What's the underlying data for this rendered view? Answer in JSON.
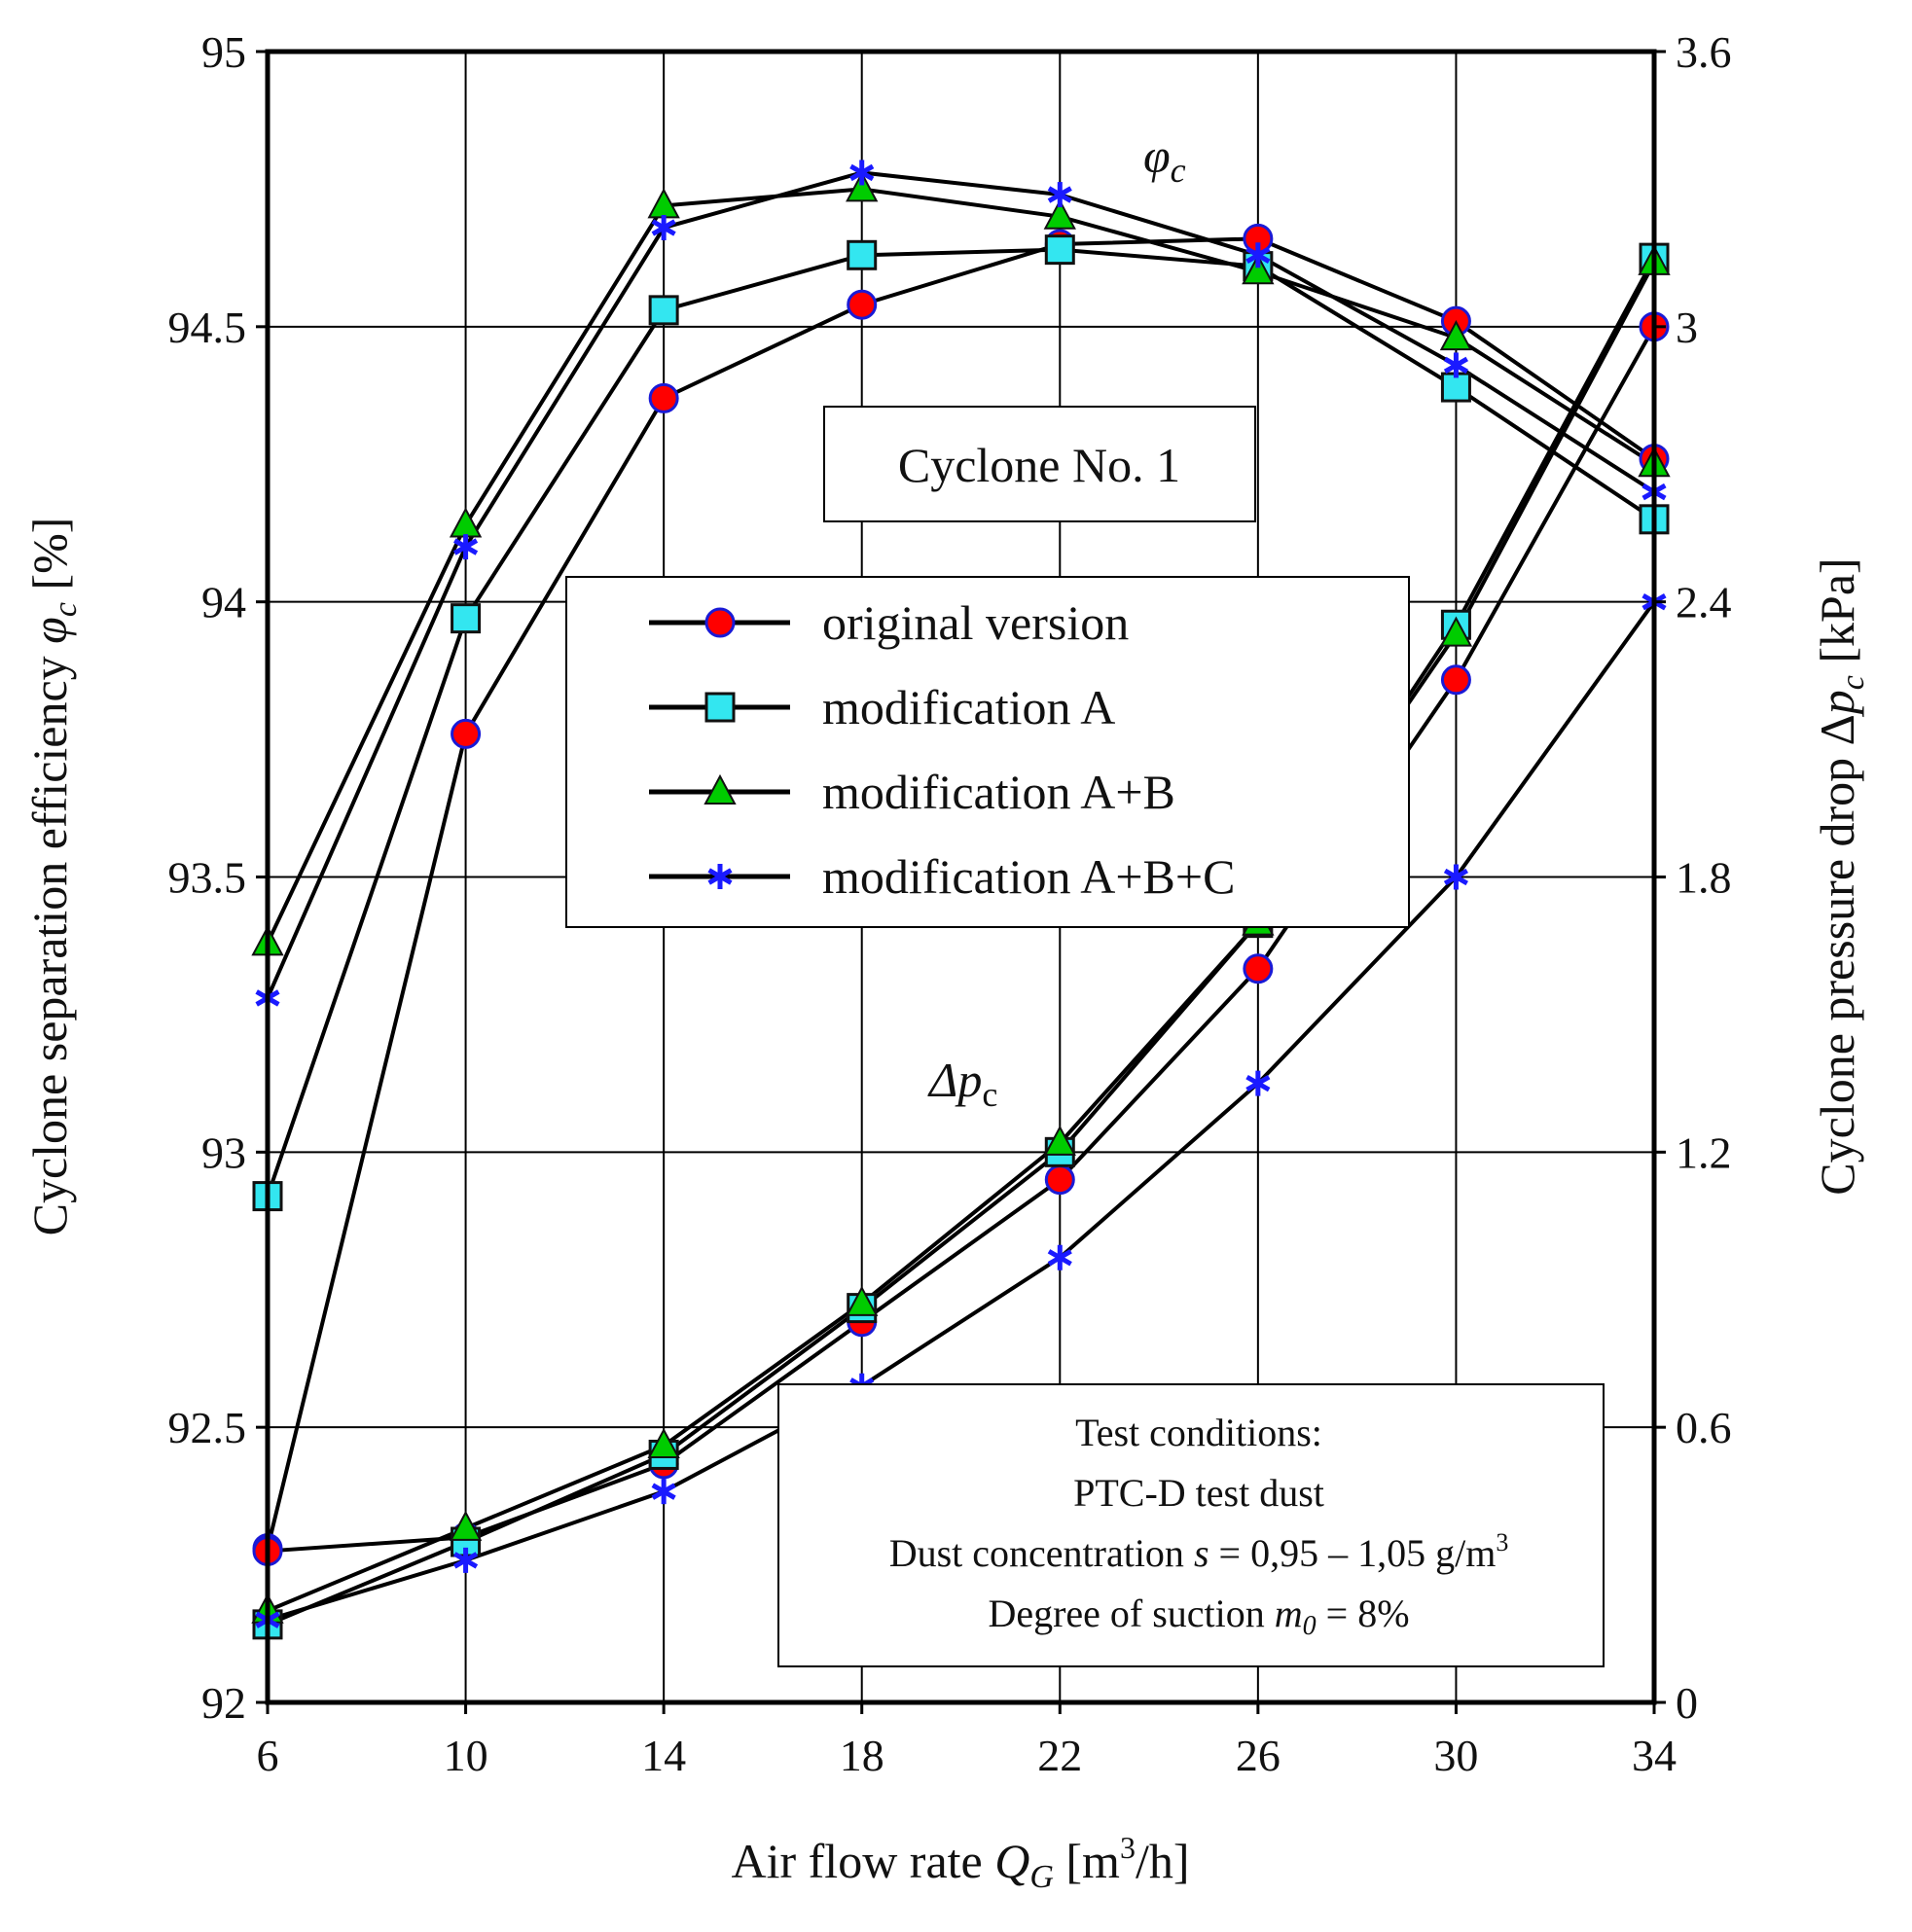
{
  "chart_data": {
    "type": "line",
    "title": "Cyclone No. 1",
    "x": [
      6,
      10,
      14,
      18,
      22,
      26,
      30,
      34
    ],
    "xlabel": "Air flow rate Q_G [m³/h]",
    "xlabel_parts": {
      "main": "Air flow rate ",
      "sym": "Q",
      "sub": "G",
      "pre_unit": " [m",
      "sup": "3",
      "post_unit": "/h]"
    },
    "xlim": [
      6,
      34
    ],
    "xticks": [
      "6",
      "10",
      "14",
      "18",
      "22",
      "26",
      "30",
      "34"
    ],
    "ylabel_left": "Cyclone separation efficiency φ_c [%]",
    "ylabel_left_parts": {
      "main": "Cyclone separation efficiency ",
      "sym": "φ",
      "sub": "c",
      "unit": " [%]"
    },
    "ylim_left": [
      92,
      95
    ],
    "yticks_left": [
      "92",
      "92.5",
      "93",
      "93.5",
      "94",
      "94.5",
      "95"
    ],
    "ylabel_right": "Cyclone pressure drop Δp_c [kPa]",
    "ylabel_right_parts": {
      "main": "Cyclone pressure drop Δ",
      "sym": "p",
      "sub": "c",
      "unit": " [kPa]"
    },
    "ylim_right": [
      0,
      3.6
    ],
    "yticks_right": [
      "0",
      "0.6",
      "1.2",
      "1.8",
      "2.4",
      "3",
      "3.6"
    ],
    "grid": true,
    "curve_labels": [
      {
        "sym": "φ",
        "sub": "c"
      },
      {
        "sym": "Δp",
        "sub": "c"
      }
    ],
    "series": [
      {
        "name": "original version",
        "marker": "circle",
        "color": "#ff0000",
        "stroke": "#1a1ad6",
        "axis": "left",
        "quantity": "efficiency",
        "values": [
          92.28,
          93.76,
          94.37,
          94.54,
          94.65,
          94.66,
          94.51,
          94.26
        ]
      },
      {
        "name": "modification A",
        "marker": "square",
        "color": "#33e6f0",
        "stroke": "#111111",
        "axis": "left",
        "quantity": "efficiency",
        "values": [
          92.92,
          93.97,
          94.53,
          94.63,
          94.64,
          94.61,
          94.39,
          94.15
        ]
      },
      {
        "name": "modification A+B",
        "marker": "triangle",
        "color": "#00cc00",
        "stroke": "#111111",
        "axis": "left",
        "quantity": "efficiency",
        "values": [
          93.38,
          94.14,
          94.72,
          94.75,
          94.7,
          94.6,
          94.48,
          94.25
        ]
      },
      {
        "name": "modification A+B+C",
        "marker": "star",
        "color": "#1a1aff",
        "stroke": "#1a1aff",
        "axis": "left",
        "quantity": "efficiency",
        "values": [
          93.28,
          94.1,
          94.68,
          94.78,
          94.74,
          94.63,
          94.43,
          94.2
        ]
      },
      {
        "name": "original version",
        "marker": "circle",
        "color": "#ff0000",
        "stroke": "#1a1ad6",
        "axis": "right",
        "quantity": "pressure drop",
        "values": [
          0.33,
          0.36,
          0.52,
          0.83,
          1.14,
          1.6,
          2.23,
          3.0
        ]
      },
      {
        "name": "modification A",
        "marker": "square",
        "color": "#33e6f0",
        "stroke": "#111111",
        "axis": "right",
        "quantity": "pressure drop",
        "values": [
          0.17,
          0.35,
          0.54,
          0.86,
          1.2,
          1.7,
          2.35,
          3.15
        ]
      },
      {
        "name": "modification A+B",
        "marker": "triangle",
        "color": "#00cc00",
        "stroke": "#111111",
        "axis": "right",
        "quantity": "pressure drop",
        "values": [
          0.2,
          0.38,
          0.56,
          0.87,
          1.22,
          1.7,
          2.33,
          3.14
        ]
      },
      {
        "name": "modification A+B+C",
        "marker": "star",
        "color": "#1a1aff",
        "stroke": "#1a1aff",
        "axis": "right",
        "quantity": "pressure drop",
        "values": [
          0.18,
          0.31,
          0.46,
          0.69,
          0.97,
          1.35,
          1.8,
          2.4
        ]
      }
    ],
    "legend": {
      "placement": "center",
      "entries": [
        "original version",
        "modification A",
        "modification A+B",
        "modification A+B+C"
      ]
    },
    "annotation": {
      "title": "Test conditions:",
      "line1": "PTC-D test dust",
      "line2_pre": "Dust concentration ",
      "line2_sym": "s",
      "line2_value": " = 0,95 – 1,05 g/m",
      "line2_sup": "3",
      "line3_pre": "Degree of suction ",
      "line3_sym": "m",
      "line3_sub": "0",
      "line3_value": " = 8%"
    }
  }
}
